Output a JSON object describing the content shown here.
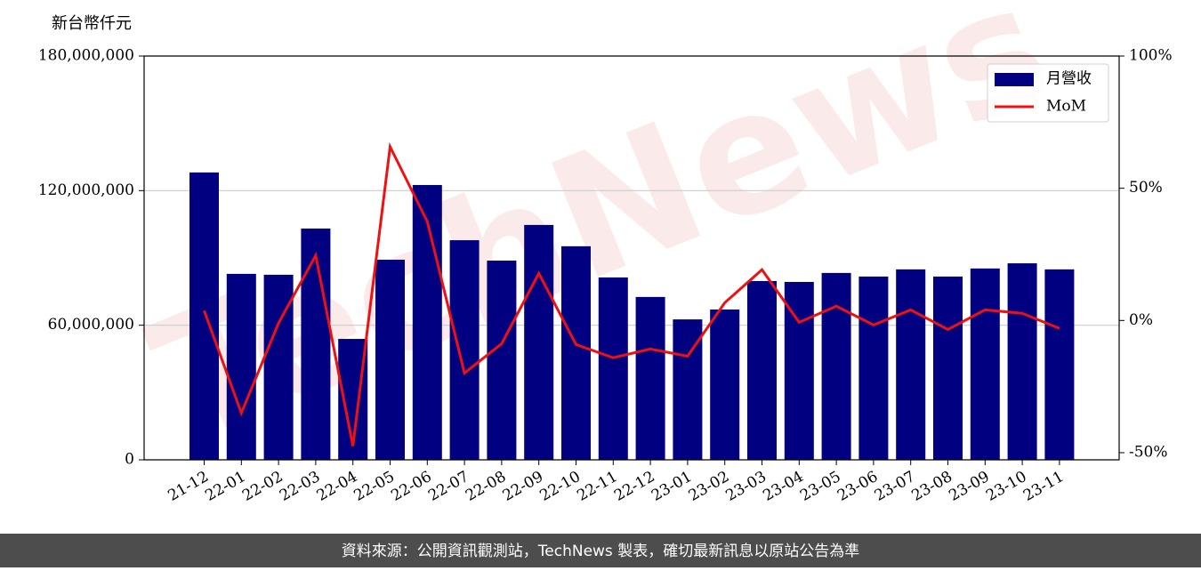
{
  "chart_data": {
    "type": "bar-line",
    "unit_label": "新台幣仟元",
    "watermark": "TechNews",
    "footer": "資料來源：公開資訊觀測站，TechNews 製表，確切最新訊息以原站公告為準",
    "categories": [
      "21-12",
      "22-01",
      "22-02",
      "22-03",
      "22-04",
      "22-05",
      "22-06",
      "22-07",
      "22-08",
      "22-09",
      "22-10",
      "22-11",
      "22-12",
      "23-01",
      "23-02",
      "23-03",
      "23-04",
      "23-05",
      "23-06",
      "23-07",
      "23-08",
      "23-09",
      "23-10",
      "23-11"
    ],
    "series": [
      {
        "name": "月營收",
        "type": "bar",
        "color": "#000080",
        "axis": "y",
        "values": [
          128100000,
          82900000,
          82500000,
          103100000,
          53900000,
          89200000,
          122500000,
          97900000,
          88800000,
          104700000,
          95200000,
          81300000,
          72600000,
          62600000,
          67000000,
          79700000,
          79300000,
          83300000,
          81700000,
          84900000,
          81700000,
          85300000,
          87600000,
          84900000
        ]
      },
      {
        "name": "MoM",
        "type": "line",
        "color": "#ee1111",
        "axis": "y2",
        "values": [
          3.7,
          -35,
          -1,
          24.6,
          -47.5,
          65.7,
          37.4,
          -19.9,
          -8.8,
          17.8,
          -9.1,
          -14.1,
          -10.8,
          -13.5,
          6.7,
          19.2,
          -0.7,
          5.4,
          -1.7,
          4.0,
          -3.4,
          4.0,
          2.7,
          -3.0
        ]
      }
    ],
    "ylim": [
      0,
      180000000
    ],
    "yticks": [
      0,
      {
        "value": 60000000,
        "label": "60,000,000"
      },
      {
        "value": 120000000,
        "label": "120,000,000"
      },
      {
        "value": 180000000,
        "label": "180,000,000"
      }
    ],
    "y2lim": [
      -52.7,
      100
    ],
    "y2ticks": [
      {
        "value": -50,
        "label": "-50%"
      },
      {
        "value": 0,
        "label": "0%"
      },
      {
        "value": 50,
        "label": "50%"
      },
      {
        "value": 100,
        "label": "100%"
      }
    ],
    "grid": true,
    "legend": "upper right"
  }
}
